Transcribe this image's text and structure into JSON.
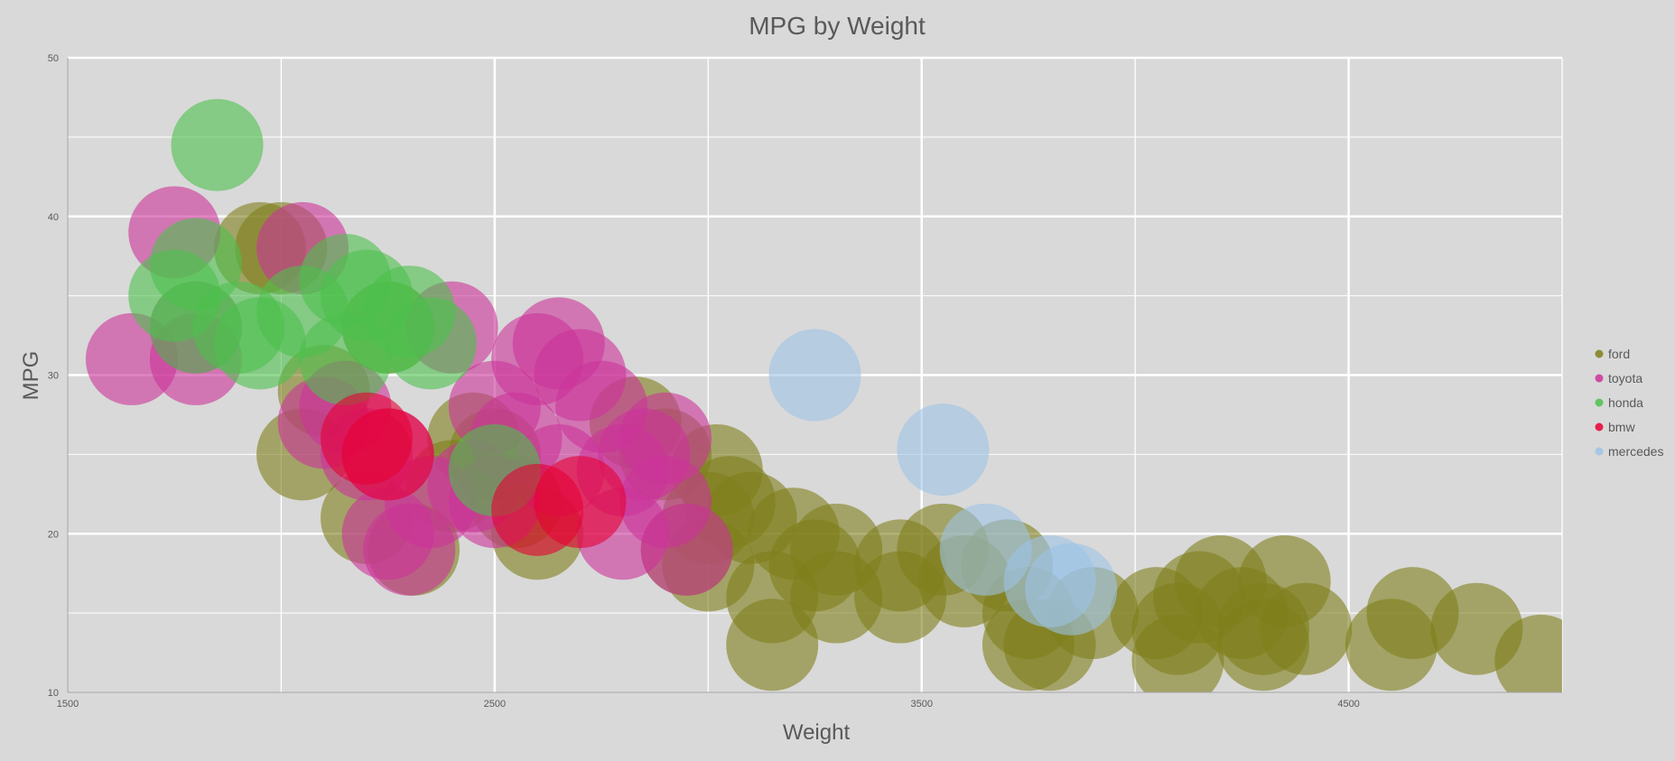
{
  "chart_data": {
    "type": "scatter",
    "variant": "bubble",
    "title": "MPG by Weight",
    "xlabel": "Weight",
    "ylabel": "MPG",
    "xlim": [
      1500,
      5000
    ],
    "ylim": [
      10,
      50
    ],
    "x_tick_labels": [
      "1500",
      "2500",
      "3500",
      "4500"
    ],
    "x_tick_values": [
      1500,
      2500,
      3500,
      4500
    ],
    "x_gridlines": [
      2000,
      2500,
      3000,
      3500,
      4000,
      4500,
      5000
    ],
    "y_tick_labels": [
      "10",
      "20",
      "30",
      "40",
      "50"
    ],
    "y_tick_values": [
      10,
      20,
      30,
      40,
      50
    ],
    "y_gridlines_major": [
      20,
      30,
      40,
      50
    ],
    "y_gridlines_minor": [
      15,
      25,
      35,
      45
    ],
    "grid": true,
    "legend_position": "right",
    "series": [
      {
        "name": "ford",
        "color": "#7f7f1a",
        "points": [
          [
            2050,
            25
          ],
          [
            2310,
            19
          ],
          [
            2200,
            21
          ],
          [
            2100,
            29
          ],
          [
            2450,
            26
          ],
          [
            2600,
            20
          ],
          [
            2550,
            22
          ],
          [
            2400,
            23
          ],
          [
            2830,
            27
          ],
          [
            2900,
            25
          ],
          [
            3000,
            21
          ],
          [
            2950,
            19
          ],
          [
            3000,
            18
          ],
          [
            3020,
            24
          ],
          [
            3050,
            22
          ],
          [
            3100,
            21
          ],
          [
            3150,
            16
          ],
          [
            3150,
            13
          ],
          [
            3200,
            20
          ],
          [
            3250,
            18
          ],
          [
            3300,
            16
          ],
          [
            3300,
            19
          ],
          [
            3450,
            18
          ],
          [
            3450,
            16
          ],
          [
            3550,
            19
          ],
          [
            3600,
            17
          ],
          [
            3700,
            18
          ],
          [
            3750,
            15
          ],
          [
            3750,
            13
          ],
          [
            3800,
            13
          ],
          [
            3900,
            15
          ],
          [
            4050,
            15
          ],
          [
            4100,
            14
          ],
          [
            4150,
            16
          ],
          [
            4200,
            17
          ],
          [
            4250,
            15
          ],
          [
            4300,
            14
          ],
          [
            4350,
            17
          ],
          [
            4400,
            14
          ],
          [
            4600,
            13
          ],
          [
            4650,
            15
          ],
          [
            4800,
            14
          ],
          [
            4950,
            12
          ],
          [
            4300,
            13
          ],
          [
            4100,
            12
          ],
          [
            2500,
            25
          ],
          [
            1950,
            38
          ],
          [
            2000,
            38
          ],
          [
            2250,
            33
          ]
        ]
      },
      {
        "name": "toyota",
        "color": "#cc3399",
        "points": [
          [
            1750,
            39
          ],
          [
            1800,
            31
          ],
          [
            1800,
            33
          ],
          [
            1650,
            31
          ],
          [
            2050,
            38
          ],
          [
            2100,
            27
          ],
          [
            2150,
            28
          ],
          [
            2200,
            25
          ],
          [
            2250,
            20
          ],
          [
            2300,
            19
          ],
          [
            2350,
            22
          ],
          [
            2400,
            33
          ],
          [
            2450,
            23
          ],
          [
            2500,
            22
          ],
          [
            2500,
            28
          ],
          [
            2550,
            26
          ],
          [
            2600,
            31
          ],
          [
            2650,
            32
          ],
          [
            2700,
            30
          ],
          [
            2750,
            28
          ],
          [
            2800,
            24
          ],
          [
            2850,
            25
          ],
          [
            2900,
            22
          ],
          [
            2950,
            19
          ],
          [
            2800,
            20
          ],
          [
            2900,
            26
          ],
          [
            2650,
            24
          ],
          [
            2250,
            25
          ]
        ]
      },
      {
        "name": "honda",
        "color": "#4dbf4d",
        "points": [
          [
            1850,
            44.5
          ],
          [
            1750,
            35
          ],
          [
            1800,
            37
          ],
          [
            1800,
            33
          ],
          [
            1900,
            33
          ],
          [
            1950,
            32
          ],
          [
            2050,
            34
          ],
          [
            2150,
            36
          ],
          [
            2200,
            35
          ],
          [
            2250,
            33
          ],
          [
            2300,
            34
          ],
          [
            2350,
            32
          ],
          [
            2150,
            31
          ],
          [
            2500,
            24
          ]
        ]
      },
      {
        "name": "bmw",
        "color": "#e60033",
        "points": [
          [
            2200,
            26
          ],
          [
            2250,
            25
          ],
          [
            2600,
            21.5
          ],
          [
            2700,
            22
          ]
        ]
      },
      {
        "name": "mercedes",
        "color": "#9dc3e6",
        "points": [
          [
            3250,
            30
          ],
          [
            3550,
            25.3
          ],
          [
            3800,
            17
          ],
          [
            3850,
            16.5
          ],
          [
            3650,
            19
          ]
        ]
      }
    ]
  }
}
